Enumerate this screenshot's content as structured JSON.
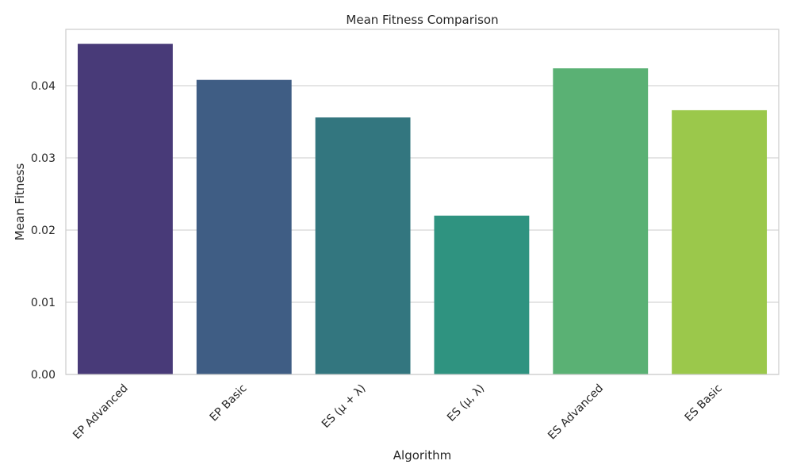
{
  "chart_data": {
    "type": "bar",
    "title": "Mean Fitness Comparison",
    "xlabel": "Algorithm",
    "ylabel": "Mean Fitness",
    "categories": [
      "EP Advanced",
      "EP Basic",
      "ES (μ + λ)",
      "ES (μ, λ)",
      "ES Advanced",
      "ES Basic"
    ],
    "values": [
      0.0458,
      0.0408,
      0.0356,
      0.022,
      0.0424,
      0.0366
    ],
    "colors": [
      "#483a78",
      "#3f5d84",
      "#33767f",
      "#2f9380",
      "#5ab174",
      "#9bc84b"
    ],
    "ylim": [
      0,
      0.0478
    ],
    "yticks": [
      0.0,
      0.01,
      0.02,
      0.03,
      0.04
    ],
    "ytick_labels": [
      "0.00",
      "0.01",
      "0.02",
      "0.03",
      "0.04"
    ],
    "grid": true,
    "grid_axis": "y"
  }
}
